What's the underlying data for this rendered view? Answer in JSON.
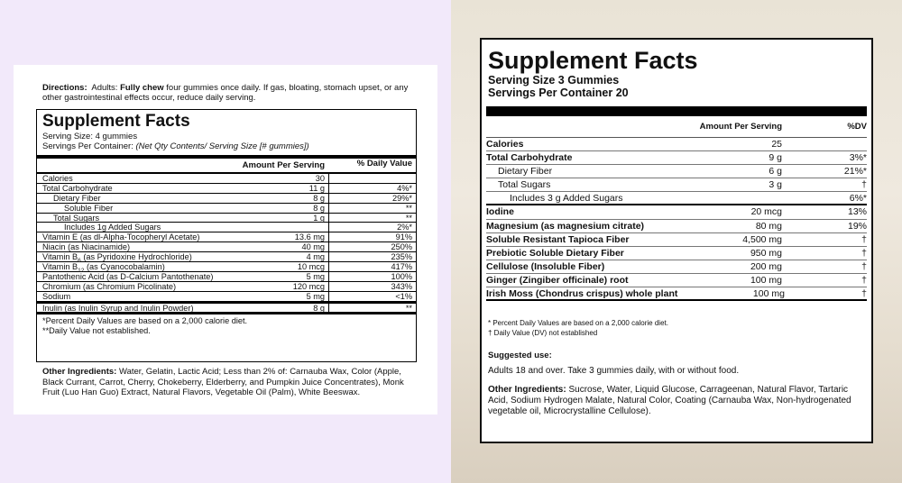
{
  "left": {
    "directions": {
      "label": "Directions:",
      "lead": "Adults:",
      "bold": "Fully chew",
      "text": "four gummies once daily.  If gas, bloating, stomach upset, or any other gastrointestinal effects occur, reduce daily serving."
    },
    "title": "Supplement Facts",
    "serving_size": "Serving Size:  4 gummies",
    "servings_label": "Servings Per Container:",
    "servings_value": "(Net Qty Contents/ Serving Size [# gummies])",
    "header": {
      "amount": "Amount Per Serving",
      "dv": "% Daily Value"
    },
    "rows": [
      {
        "name": "Calories",
        "amount": "30"
      },
      {
        "name": "Total Carbohydrate",
        "amount": "11 g",
        "dv": "4%*"
      },
      {
        "name": "Dietary Fiber",
        "amount": "8 g",
        "dv": "29%*"
      },
      {
        "name": "Soluble Fiber",
        "amount": "8 g",
        "dv": "**"
      },
      {
        "name": "Total Sugars",
        "amount": "1 g",
        "dv": "**"
      },
      {
        "name": "Includes 1g Added Sugars",
        "dv": "2%*"
      },
      {
        "name": "Vitamin E (as dl-Alpha-Tocopheryl Acetate)",
        "amount": "13.6 mg",
        "dv": "91%"
      },
      {
        "name": "Niacin (as Niacinamide)",
        "amount": "40 mg",
        "dv": "250%"
      },
      {
        "name": "Vitamin B",
        "sub": "6",
        "suffix": " (as Pyridoxine Hydrochloride)",
        "amount": "4 mg",
        "dv": "235%"
      },
      {
        "name": "Vitamin B",
        "sub": "12",
        "suffix": " (as Cyanocobalamin)",
        "amount": "10 mcg",
        "dv": "417%"
      },
      {
        "name": "Pantothenic Acid (as D-Calcium Pantothenate)",
        "amount": "5 mg",
        "dv": "100%"
      },
      {
        "name": "Chromium (as Chromium Picolinate)",
        "amount": "120 mcg",
        "dv": "343%"
      },
      {
        "name": "Sodium",
        "amount": "5 mg",
        "dv": "<1%"
      },
      {
        "name": "Inulin (as Inulin Syrup and Inulin Powder)",
        "amount": "8 g",
        "dv": "**"
      }
    ],
    "footnotes": [
      "*Percent Daily Values are based on a 2,000 calorie diet.",
      "**Daily Value not established."
    ],
    "other_ingredients": {
      "label": "Other Ingredients:",
      "text": "Water, Gelatin, Lactic Acid; Less than 2% of: Carnauba Wax, Color (Apple, Black Currant, Carrot, Cherry, Chokeberry, Elderberry, and Pumpkin Juice Concentrates), Monk Fruit (Luo Han Guo) Extract, Natural Flavors, Vegetable Oil (Palm), White Beeswax."
    }
  },
  "right": {
    "title": "Supplement Facts",
    "serving_size": "Serving Size  3 Gummies",
    "servings": "Servings Per Container  20",
    "header": {
      "amount": "Amount Per Serving",
      "dv": "%DV"
    },
    "rows": [
      {
        "name": "Calories",
        "amount": "25"
      },
      {
        "name": "Total Carbohydrate",
        "amount": "9 g",
        "dv": "3%*"
      },
      {
        "name": "Dietary Fiber",
        "amount": "6 g",
        "dv": "21%*"
      },
      {
        "name": "Total Sugars",
        "amount": "3 g",
        "dv": "†"
      },
      {
        "name": "Includes 3 g Added Sugars",
        "dv": "6%*"
      },
      {
        "name": "Iodine",
        "amount": "20 mcg",
        "dv": "13%"
      },
      {
        "name": "Magnesium (as magnesium citrate)",
        "amount": "80 mg",
        "dv": "19%"
      },
      {
        "name": "Soluble Resistant Tapioca Fiber",
        "amount": "4,500 mg",
        "dv": "†"
      },
      {
        "name": "Prebiotic Soluble Dietary Fiber",
        "amount": "950 mg",
        "dv": "†"
      },
      {
        "name": "Cellulose (Insoluble Fiber)",
        "amount": "200 mg",
        "dv": "†"
      },
      {
        "name": "Ginger (Zingiber officinale) root",
        "amount": "100 mg",
        "dv": "†"
      },
      {
        "name": "Irish Moss (Chondrus crispus) whole plant",
        "amount": "100 mg",
        "dv": "†"
      }
    ],
    "footnotes": [
      "*  Percent Daily Values are based on a 2,000 calorie diet.",
      "†  Daily Value (DV) not established"
    ],
    "suggested_use": {
      "label": "Suggested use:",
      "text": "Adults 18 and over. Take 3 gummies daily, with or without food."
    },
    "other_ingredients": {
      "label": "Other Ingredients:",
      "text": "Sucrose, Water, Liquid Glucose, Carrageenan, Natural Flavor, Tartaric Acid, Sodium Hydrogen Malate, Natural Color, Coating (Carnauba Wax, Non-hydrogenated vegetable oil, Microcrystalline Cellulose)."
    }
  }
}
